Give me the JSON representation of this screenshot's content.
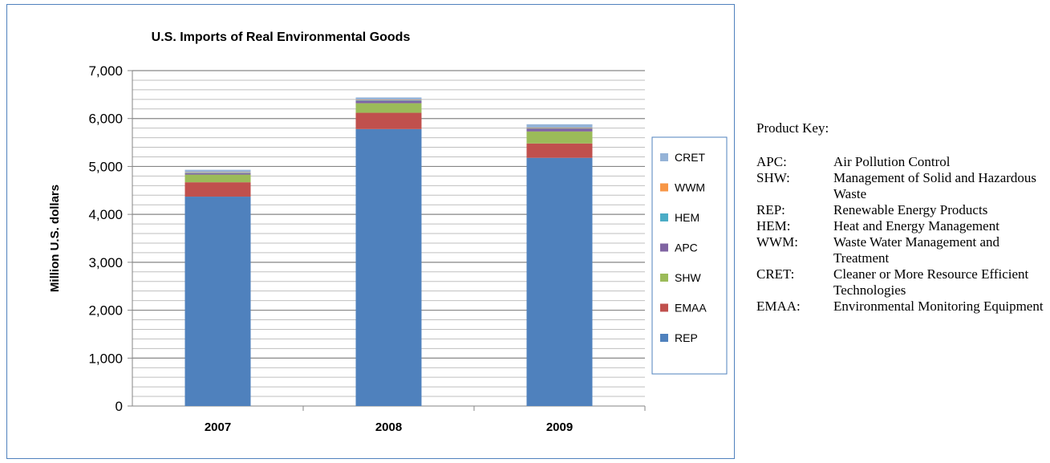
{
  "chart_data": {
    "type": "bar",
    "stacked": true,
    "title": "U.S. Imports of Real Environmental Goods",
    "xlabel": "",
    "ylabel": "Million U.S. dollars",
    "ylim": [
      0,
      7000
    ],
    "yticks": [
      0,
      1000,
      2000,
      3000,
      4000,
      5000,
      6000,
      7000
    ],
    "ytick_labels": [
      "0",
      "1,000",
      "2,000",
      "3,000",
      "4,000",
      "5,000",
      "6,000",
      "7,000"
    ],
    "minor_gridlines_step": 200,
    "grid": true,
    "legend_position": "right",
    "categories": [
      "2007",
      "2008",
      "2009"
    ],
    "series": [
      {
        "name": "REP",
        "color": "#4f81bd",
        "values": [
          4370,
          5780,
          5180
        ]
      },
      {
        "name": "EMAA",
        "color": "#c0504d",
        "values": [
          300,
          340,
          300
        ]
      },
      {
        "name": "SHW",
        "color": "#9bbb59",
        "values": [
          160,
          200,
          250
        ]
      },
      {
        "name": "APC",
        "color": "#8064a2",
        "values": [
          30,
          50,
          60
        ]
      },
      {
        "name": "HEM",
        "color": "#4bacc6",
        "values": [
          10,
          10,
          10
        ]
      },
      {
        "name": "WWM",
        "color": "#f79646",
        "values": [
          10,
          10,
          10
        ]
      },
      {
        "name": "CRET",
        "color": "#95b3d7",
        "values": [
          50,
          50,
          70
        ]
      }
    ]
  },
  "product_key": {
    "title": "Product Key:",
    "items": [
      {
        "code": "APC:",
        "desc": "Air Pollution Control"
      },
      {
        "code": "SHW:",
        "desc": "Management of Solid and Hazardous Waste"
      },
      {
        "code": "REP:",
        "desc": "Renewable Energy Products"
      },
      {
        "code": "HEM:",
        "desc": "Heat and Energy Management"
      },
      {
        "code": "WWM:",
        "desc": "Waste Water Management and Treatment"
      },
      {
        "code": "CRET:",
        "desc": "Cleaner or More Resource Efficient Technologies"
      },
      {
        "code": "EMAA:",
        "desc": "Environmental Monitoring Equipment"
      }
    ]
  }
}
